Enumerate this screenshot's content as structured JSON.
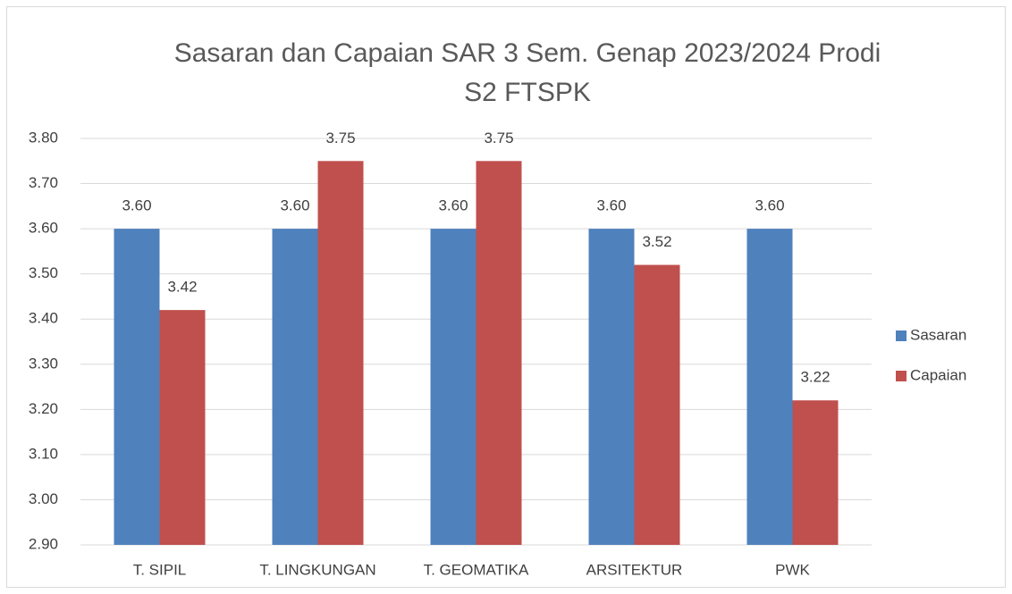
{
  "chart_data": {
    "type": "bar",
    "title": "Sasaran dan Capaian SAR 3 Sem. Genap 2023/2024 Prodi\nS2 FTSPK",
    "categories": [
      "T. SIPIL",
      "T. LINGKUNGAN",
      "T. GEOMATIKA",
      "ARSITEKTUR",
      "PWK"
    ],
    "series": [
      {
        "name": "Sasaran",
        "color": "#4f81bd",
        "values": [
          3.6,
          3.6,
          3.6,
          3.6,
          3.6
        ],
        "value_labels": [
          "3.60",
          "3.60",
          "3.60",
          "3.60",
          "3.60"
        ]
      },
      {
        "name": "Capaian",
        "color": "#c0504d",
        "values": [
          3.42,
          3.75,
          3.75,
          3.52,
          3.22
        ],
        "value_labels": [
          "3.42",
          "3.75",
          "3.75",
          "3.52",
          "3.22"
        ]
      }
    ],
    "ylim": [
      2.9,
      3.8
    ],
    "yticks": [
      {
        "value": 2.9,
        "label": "2.90"
      },
      {
        "value": 3.0,
        "label": "3.00"
      },
      {
        "value": 3.1,
        "label": "3.10"
      },
      {
        "value": 3.2,
        "label": "3.20"
      },
      {
        "value": 3.3,
        "label": "3.30"
      },
      {
        "value": 3.4,
        "label": "3.40"
      },
      {
        "value": 3.5,
        "label": "3.50"
      },
      {
        "value": 3.6,
        "label": "3.60"
      },
      {
        "value": 3.7,
        "label": "3.70"
      },
      {
        "value": 3.8,
        "label": "3.80"
      }
    ],
    "grid": true,
    "legend": "right"
  }
}
